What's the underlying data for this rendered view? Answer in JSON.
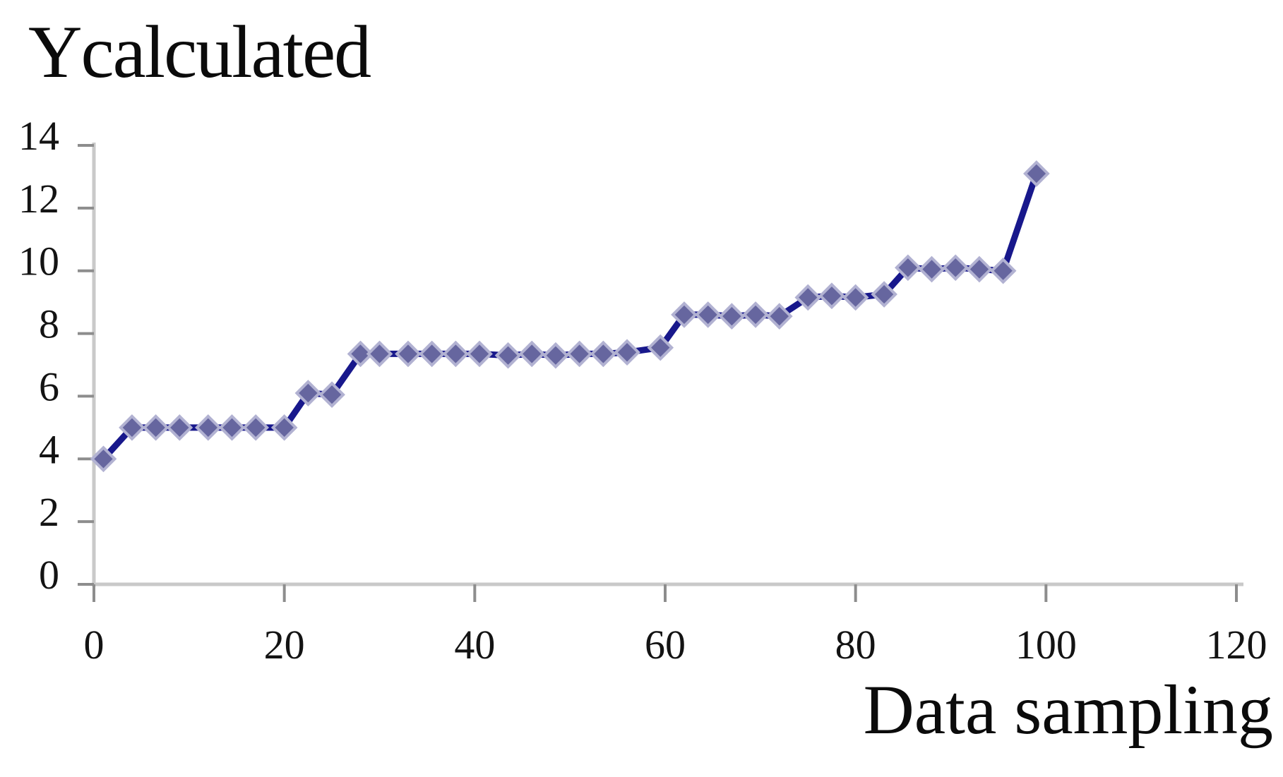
{
  "chart_data": {
    "type": "line",
    "title": "Ycalculated",
    "xlabel": "Data sampling",
    "ylabel": "Ycalculated",
    "xlim": [
      0,
      120
    ],
    "ylim": [
      0,
      14
    ],
    "xticks": [
      0,
      20,
      40,
      60,
      80,
      100,
      120
    ],
    "yticks": [
      0,
      2,
      4,
      6,
      8,
      10,
      12,
      14
    ],
    "grid": false,
    "legend": "none",
    "marker": "diamond",
    "line_color": "#18188c",
    "marker_color": "#66669f",
    "marker_halo_color": "#b2b2d2",
    "axis_color": "#c9c9c9",
    "tick_color": "#8d8d8d",
    "text_color": "#131313",
    "points": [
      [
        1,
        4.0
      ],
      [
        4,
        5.0
      ],
      [
        6.5,
        5.0
      ],
      [
        9,
        5.0
      ],
      [
        12,
        5.0
      ],
      [
        14.5,
        5.0
      ],
      [
        17,
        5.0
      ],
      [
        20,
        5.0
      ],
      [
        22.5,
        6.1
      ],
      [
        25,
        6.05
      ],
      [
        28,
        7.35
      ],
      [
        30,
        7.35
      ],
      [
        33,
        7.35
      ],
      [
        35.5,
        7.35
      ],
      [
        38,
        7.35
      ],
      [
        40.5,
        7.35
      ],
      [
        43.5,
        7.3
      ],
      [
        46,
        7.35
      ],
      [
        48.5,
        7.3
      ],
      [
        51,
        7.35
      ],
      [
        53.5,
        7.35
      ],
      [
        56,
        7.4
      ],
      [
        59.5,
        7.55
      ],
      [
        62,
        8.6
      ],
      [
        64.5,
        8.6
      ],
      [
        67,
        8.55
      ],
      [
        69.5,
        8.6
      ],
      [
        72,
        8.55
      ],
      [
        75,
        9.15
      ],
      [
        77.5,
        9.2
      ],
      [
        80,
        9.15
      ],
      [
        83,
        9.25
      ],
      [
        85.5,
        10.1
      ],
      [
        88,
        10.05
      ],
      [
        90.5,
        10.1
      ],
      [
        93,
        10.05
      ],
      [
        95.5,
        10.0
      ],
      [
        99,
        13.1
      ]
    ]
  }
}
